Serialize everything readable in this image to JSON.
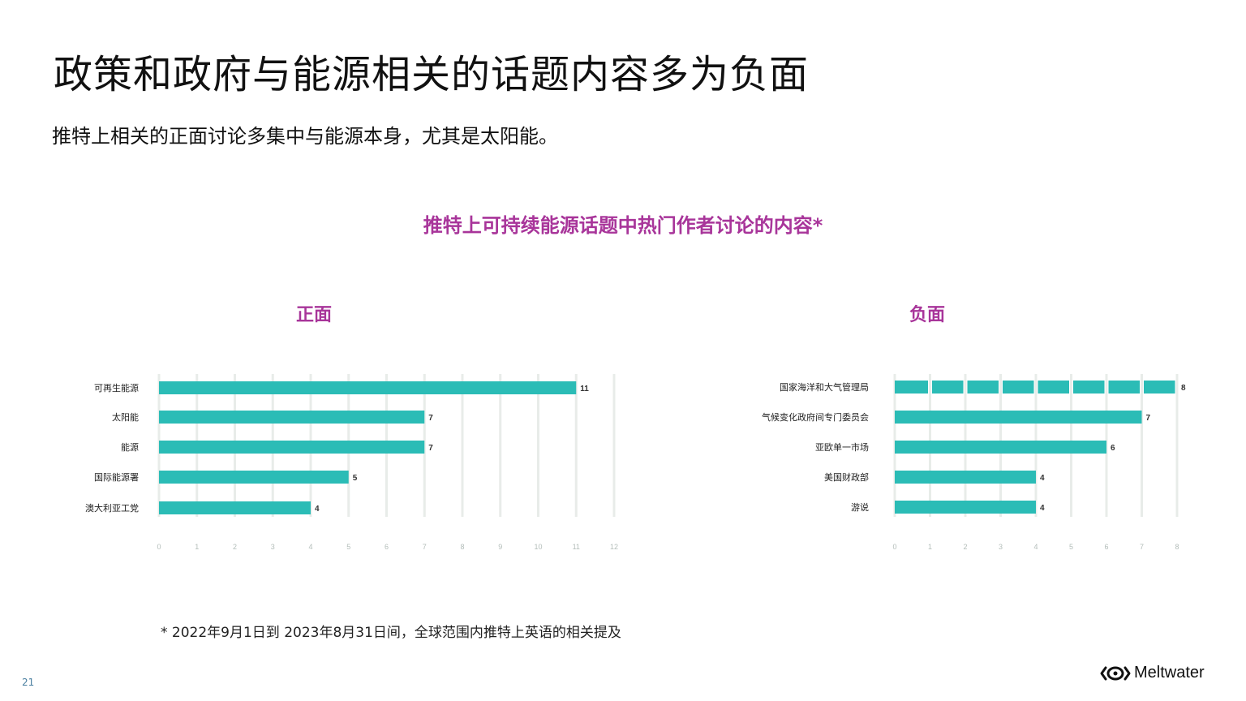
{
  "page": {
    "title": "政策和政府与能源相关的话题内容多为负面",
    "subtitle": "推特上相关的正面讨论多集中与能源本身，尤其是太阳能。",
    "chart_heading": "推特上可持续能源话题中热门作者讨论的内容*",
    "footnote": "* 2022年9月1日到 2023年8月31日间，全球范围内推特上英语的相关提及",
    "page_number": "21",
    "brand": "Meltwater"
  },
  "colors": {
    "bar": "#2bbcb6",
    "grid": "#e8ece9",
    "accent": "#a8359a",
    "tick": "#b3bdb9"
  },
  "chart_data": [
    {
      "type": "bar",
      "orientation": "horizontal",
      "title": "正面",
      "categories": [
        "可再生能源",
        "太阳能",
        "能源",
        "国际能源署",
        "澳大利亚工党"
      ],
      "values": [
        11,
        7,
        7,
        5,
        4
      ],
      "xticks": [
        0,
        1,
        2,
        3,
        4,
        5,
        6,
        7,
        8,
        9,
        10,
        11,
        12
      ],
      "xlim": [
        0,
        12
      ],
      "grid": true
    },
    {
      "type": "bar",
      "orientation": "horizontal",
      "title": "负面",
      "categories": [
        "国家海洋和大气管理局",
        "气候变化政府间专门委员会",
        "亚欧单一市场",
        "美国财政部",
        "游说"
      ],
      "values": [
        8,
        7,
        6,
        4,
        4
      ],
      "xticks": [
        0,
        1,
        2,
        3,
        4,
        5,
        6,
        7,
        8
      ],
      "xlim": [
        0,
        8
      ],
      "grid": true
    }
  ]
}
